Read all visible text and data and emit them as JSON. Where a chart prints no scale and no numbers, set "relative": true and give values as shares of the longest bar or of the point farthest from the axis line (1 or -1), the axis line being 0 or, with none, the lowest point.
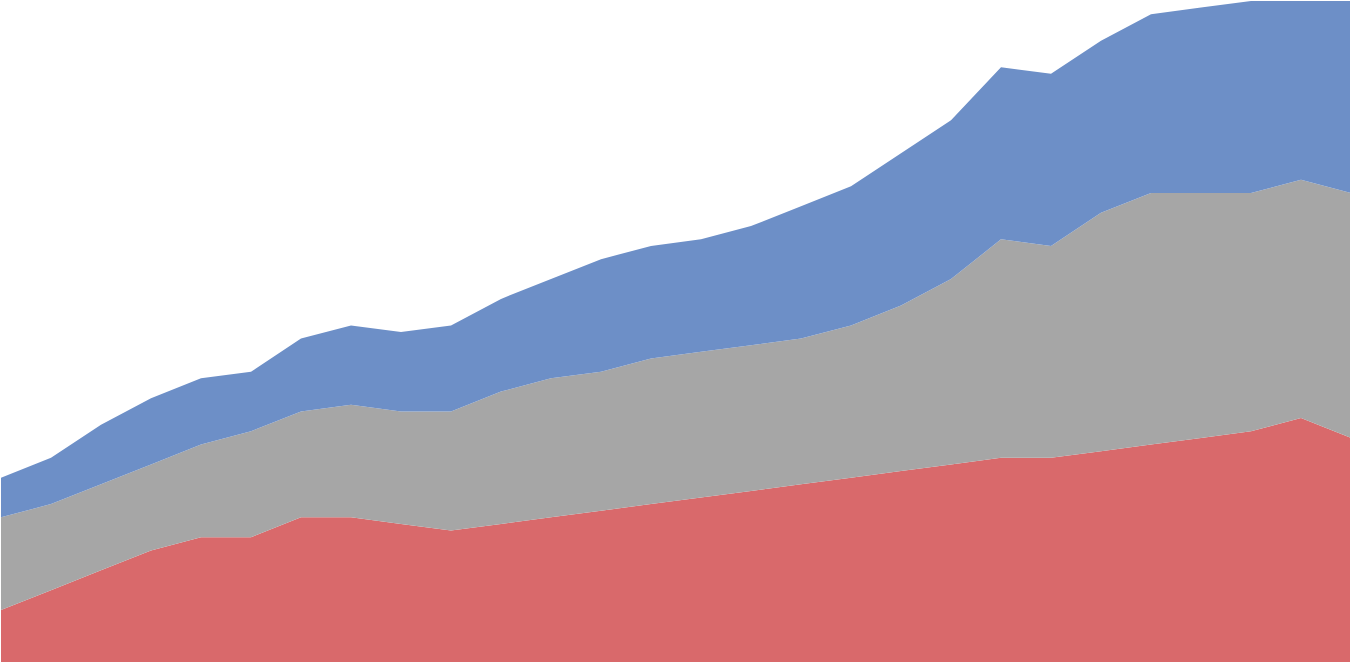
{
  "chart_data": {
    "type": "area",
    "stacked": true,
    "relative": true,
    "categories": [
      null,
      null,
      null,
      null,
      null,
      null,
      null,
      null,
      null,
      null,
      null,
      null,
      null,
      null,
      null,
      null,
      null,
      null,
      null,
      null,
      null,
      null,
      null,
      null,
      null,
      null,
      null,
      null
    ],
    "series": [
      {
        "color": "#d9696b",
        "values": [
          0.08,
          0.11,
          0.14,
          0.17,
          0.19,
          0.19,
          0.22,
          0.22,
          0.21,
          0.2,
          0.21,
          0.22,
          0.23,
          0.24,
          0.25,
          0.26,
          0.27,
          0.28,
          0.29,
          0.3,
          0.31,
          0.31,
          0.32,
          0.33,
          0.34,
          0.35,
          0.37,
          0.34
        ]
      },
      {
        "color": "#a6a6a6",
        "values": [
          0.14,
          0.13,
          0.13,
          0.13,
          0.14,
          0.16,
          0.16,
          0.17,
          0.17,
          0.18,
          0.2,
          0.21,
          0.21,
          0.22,
          0.22,
          0.22,
          0.22,
          0.23,
          0.25,
          0.28,
          0.33,
          0.32,
          0.36,
          0.38,
          0.37,
          0.36,
          0.36,
          0.37
        ]
      },
      {
        "color": "#6d8fc7",
        "values": [
          0.06,
          0.07,
          0.09,
          0.1,
          0.1,
          0.09,
          0.11,
          0.12,
          0.12,
          0.13,
          0.14,
          0.15,
          0.17,
          0.17,
          0.17,
          0.18,
          0.2,
          0.21,
          0.23,
          0.24,
          0.26,
          0.26,
          0.26,
          0.27,
          0.28,
          0.29,
          0.27,
          0.29
        ]
      }
    ]
  }
}
